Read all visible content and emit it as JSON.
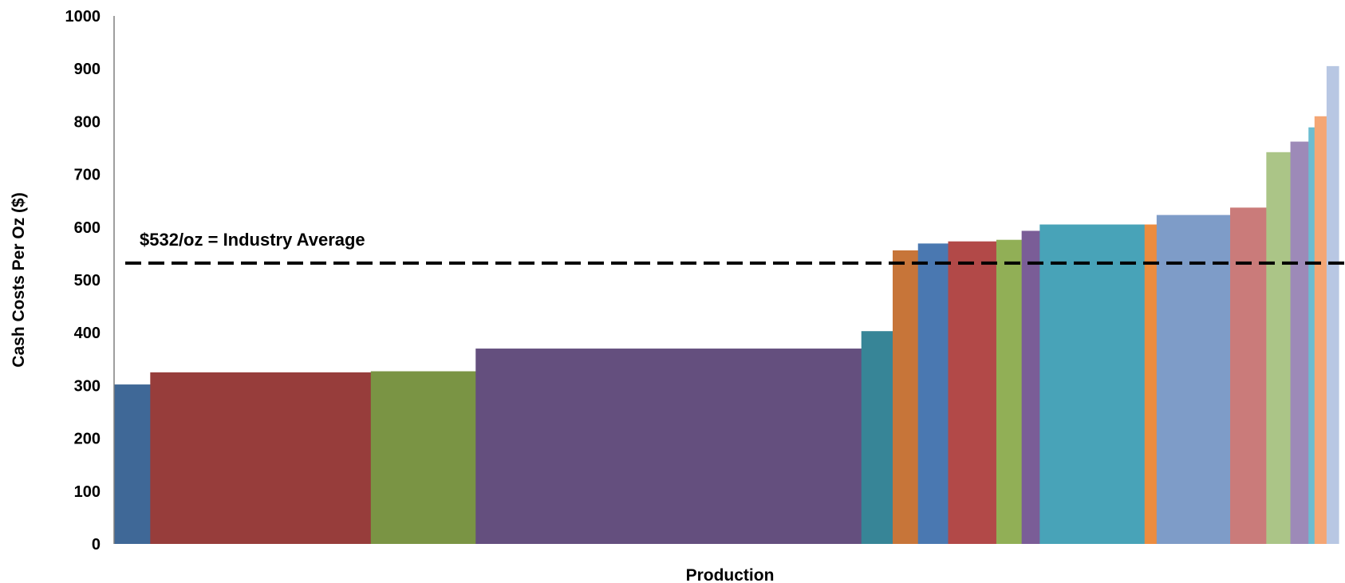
{
  "chart_data": {
    "type": "bar",
    "subtype": "cost-curve (variable-width bars)",
    "title": "",
    "xlabel": "Production",
    "ylabel": "Cash Costs Per Oz ($)",
    "ylim": [
      0,
      1000
    ],
    "yticks": [
      0,
      100,
      200,
      300,
      400,
      500,
      600,
      700,
      800,
      900,
      1000
    ],
    "grid": false,
    "legend": "none",
    "bars": [
      {
        "production": 3.0,
        "cost": 302,
        "color": "#3F6897"
      },
      {
        "production": 18.3,
        "cost": 325,
        "color": "#973D3B"
      },
      {
        "production": 8.7,
        "cost": 327,
        "color": "#7A9444"
      },
      {
        "production": 32.0,
        "cost": 370,
        "color": "#644F7E"
      },
      {
        "production": 2.6,
        "cost": 403,
        "color": "#378597"
      },
      {
        "production": 2.1,
        "cost": 556,
        "color": "#C77539"
      },
      {
        "production": 2.5,
        "cost": 569,
        "color": "#4A78B1"
      },
      {
        "production": 4.0,
        "cost": 573,
        "color": "#B24948"
      },
      {
        "production": 2.1,
        "cost": 576,
        "color": "#91AF56"
      },
      {
        "production": 1.5,
        "cost": 593,
        "color": "#7A5D97"
      },
      {
        "production": 8.7,
        "cost": 605,
        "color": "#48A3B8"
      },
      {
        "production": 1.0,
        "cost": 605,
        "color": "#EC8C3F"
      },
      {
        "production": 6.1,
        "cost": 623,
        "color": "#7E9CC8"
      },
      {
        "production": 3.0,
        "cost": 637,
        "color": "#CA7B7A"
      },
      {
        "production": 2.0,
        "cost": 742,
        "color": "#ABC587"
      },
      {
        "production": 1.5,
        "cost": 762,
        "color": "#9D8AB8"
      },
      {
        "production": 0.5,
        "cost": 789,
        "color": "#6ABDD1"
      },
      {
        "production": 1.0,
        "cost": 810,
        "color": "#F4A674"
      },
      {
        "production": 1.0,
        "cost": 905,
        "color": "#B8C7E3"
      }
    ],
    "reference_line": {
      "value": 532,
      "label": "$532/oz = Industry Average",
      "style": "dashed",
      "color": "#000000"
    },
    "axis_color": "#7F7F7F"
  }
}
